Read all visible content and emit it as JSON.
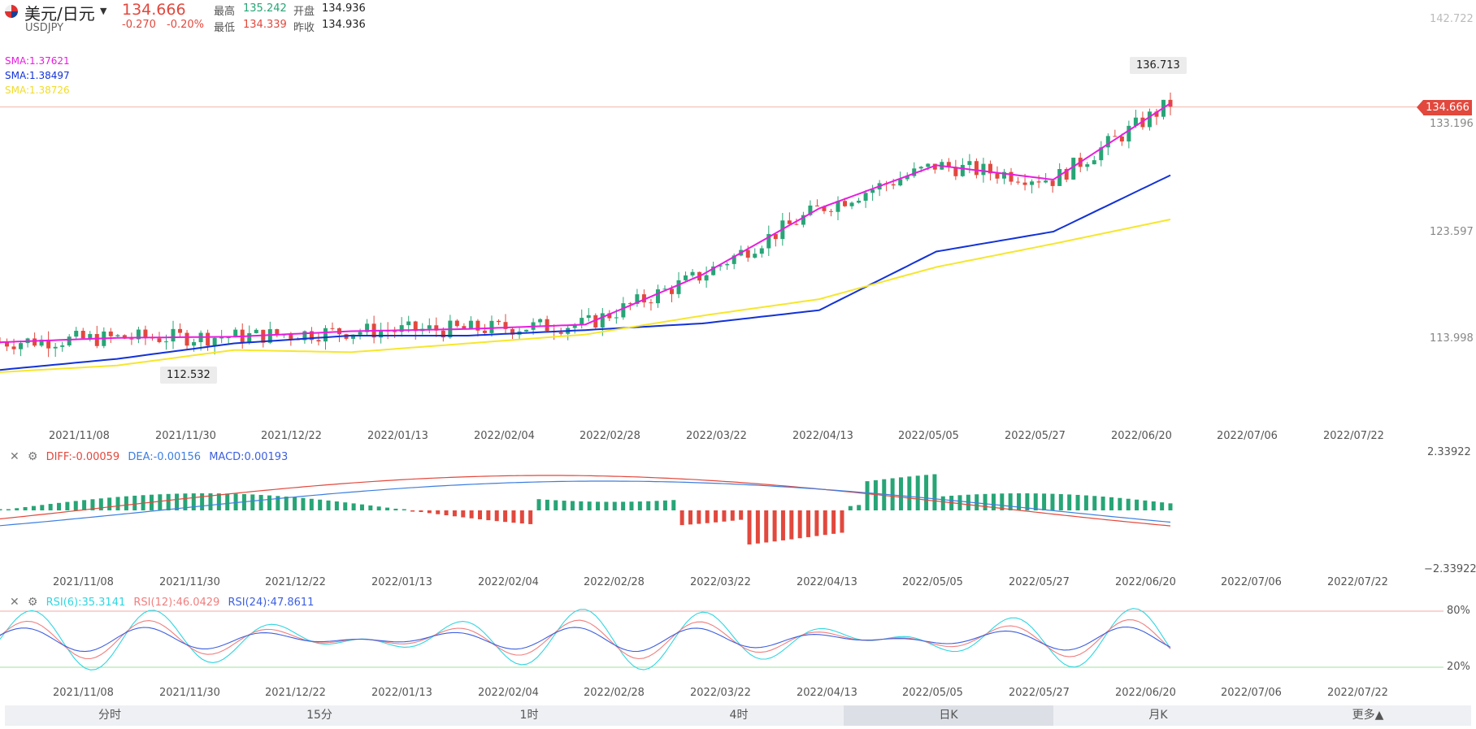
{
  "header": {
    "pair_name": "美元/日元",
    "symbol": "USDJPY",
    "price": "134.666",
    "change": "-0.270",
    "change_pct": "-0.20%",
    "high_label": "最高",
    "high": "135.242",
    "low_label": "最低",
    "low": "134.339",
    "open_label": "开盘",
    "open": "134.936",
    "prev_close_label": "昨收",
    "prev_close": "134.936"
  },
  "sma_legend": [
    "SMA:1.37621",
    "SMA:1.38497",
    "SMA:1.38726"
  ],
  "sma_colors": [
    "#e81ce0",
    "#1232d6",
    "#f6e62e"
  ],
  "price_axis": [
    "142.722",
    "133.196",
    "123.597",
    "113.998"
  ],
  "current_price_tag": "134.666",
  "high_callout": "136.713",
  "low_callout": "112.532",
  "dates": [
    "2021/11/08",
    "2021/11/30",
    "2021/12/22",
    "2022/01/13",
    "2022/02/04",
    "2022/02/28",
    "2022/03/22",
    "2022/04/13",
    "2022/05/05",
    "2022/05/27",
    "2022/06/20",
    "2022/07/06",
    "2022/07/22"
  ],
  "macd": {
    "diff": "DIFF:-0.00059",
    "dea": "DEA:-0.00156",
    "macd": "MACD:0.00193",
    "axis_top": "2.33922",
    "axis_bottom": "−2.33922"
  },
  "rsi": {
    "rsi6": "RSI(6):35.3141",
    "rsi12": "RSI(12):46.0429",
    "rsi24": "RSI(24):47.8611",
    "level_high": "80%",
    "level_low": "20%"
  },
  "tabs": [
    "分时",
    "15分",
    "1时",
    "4时",
    "日K",
    "月K",
    "更多▲"
  ],
  "active_tab": "日K",
  "icons": {
    "close": "close-icon",
    "settings": "settings-icon",
    "dropdown": "chevron-down-icon",
    "flag": "us-flag-icon"
  },
  "colors": {
    "up": "#27a576",
    "down": "#e2483d",
    "diff_line": "#e2483d",
    "dea_line": "#3d7ee0",
    "rsi6": "#2fd6e0",
    "rsi12": "#f07e7e",
    "rsi24": "#3d5fe0"
  },
  "chart_data": {
    "type": "line",
    "title": "",
    "x": [
      "2021/11/08",
      "2021/11/30",
      "2021/12/22",
      "2022/01/13",
      "2022/02/04",
      "2022/02/28",
      "2022/03/22",
      "2022/04/13",
      "2022/05/05",
      "2022/05/27",
      "2022/06/20"
    ],
    "series": [
      {
        "name": "SMA:1.37621",
        "values": [
          113.4,
          113.8,
          113.9,
          114.4,
          114.6,
          115.0,
          119.5,
          125.5,
          129.4,
          128.1,
          135.0
        ]
      },
      {
        "name": "SMA:1.38497",
        "values": [
          110.9,
          111.9,
          113.3,
          114.0,
          114.0,
          114.5,
          115.1,
          116.3,
          121.6,
          123.4,
          128.5
        ]
      },
      {
        "name": "SMA:1.38726",
        "values": [
          110.7,
          111.3,
          112.7,
          112.5,
          113.3,
          114.1,
          115.8,
          117.3,
          120.2,
          122.3,
          124.5
        ]
      }
    ],
    "ylim": [
      110.0,
      142.722
    ],
    "y_ticks": [
      "142.722",
      "133.196",
      "123.597",
      "113.998"
    ],
    "high_marker": 136.713,
    "low_marker": 112.532,
    "last_price": 134.666
  }
}
